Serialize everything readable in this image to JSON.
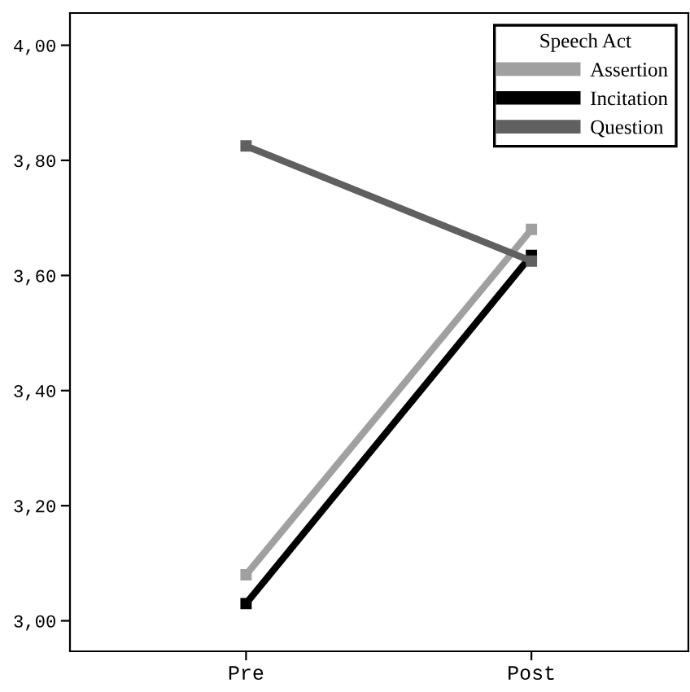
{
  "chart_data": {
    "type": "line",
    "categories": [
      "Pre",
      "Post"
    ],
    "series": [
      {
        "name": "Assertion",
        "color": "#a0a0a0",
        "values": [
          3.08,
          3.68
        ]
      },
      {
        "name": "Incitation",
        "color": "#000000",
        "values": [
          3.03,
          3.635
        ]
      },
      {
        "name": "Question",
        "color": "#606060",
        "values": [
          3.825,
          3.625
        ]
      }
    ],
    "legend_title": "Speech Act",
    "legend": "top right",
    "marker": "square",
    "line_style": "solid",
    "grid": false,
    "ylim": [
      2.947,
      4.056
    ],
    "yticks": [
      {
        "value": 3.0,
        "label": "3,00"
      },
      {
        "value": 3.2,
        "label": "3,20"
      },
      {
        "value": 3.4,
        "label": "3,40"
      },
      {
        "value": 3.6,
        "label": "3,60"
      },
      {
        "value": 3.8,
        "label": "3,80"
      },
      {
        "value": 4.0,
        "label": "4,00"
      }
    ]
  }
}
